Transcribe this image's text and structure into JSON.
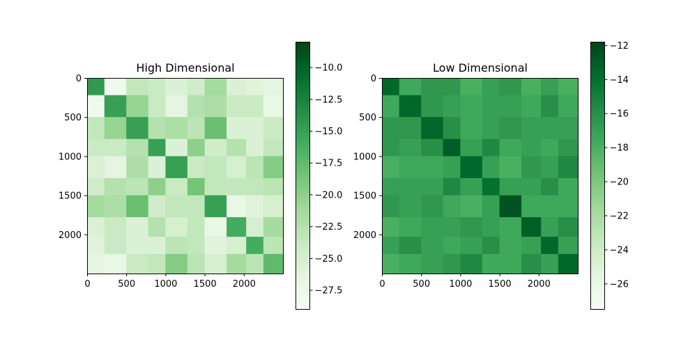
{
  "chart_data": [
    {
      "type": "heatmap",
      "title": "High Dimensional",
      "xlim": [
        0,
        2500
      ],
      "ylim": [
        2500,
        0
      ],
      "xticks": [
        0,
        500,
        1000,
        1500,
        2000
      ],
      "yticks": [
        0,
        500,
        1000,
        1500,
        2000
      ],
      "block_edges": [
        0,
        220,
        500,
        780,
        1000,
        1280,
        1500,
        1780,
        2030,
        2250,
        2500
      ],
      "block_values": [
        [
          -14.5,
          -28.0,
          -23.5,
          -24.0,
          -25.5,
          -24.5,
          -21.5,
          -25.5,
          -26.0,
          -26.5
        ],
        [
          -28.0,
          -15.0,
          -20.5,
          -24.0,
          -26.5,
          -22.5,
          -22.0,
          -24.0,
          -24.0,
          -27.0
        ],
        [
          -23.5,
          -20.5,
          -15.0,
          -22.5,
          -22.0,
          -23.0,
          -18.0,
          -25.5,
          -25.5,
          -24.0
        ],
        [
          -24.0,
          -24.0,
          -22.5,
          -15.0,
          -25.5,
          -20.0,
          -24.5,
          -22.5,
          -25.5,
          -23.5
        ],
        [
          -25.5,
          -26.5,
          -22.0,
          -25.5,
          -15.0,
          -24.0,
          -23.5,
          -25.0,
          -23.0,
          -19.5
        ],
        [
          -24.5,
          -22.5,
          -23.0,
          -20.0,
          -24.0,
          -18.5,
          -23.5,
          -23.5,
          -23.5,
          -23.0
        ],
        [
          -21.5,
          -22.0,
          -18.0,
          -24.5,
          -23.5,
          -23.5,
          -15.0,
          -27.0,
          -26.0,
          -25.0
        ],
        [
          -25.5,
          -24.0,
          -25.5,
          -22.5,
          -25.0,
          -23.5,
          -27.0,
          -16.0,
          -25.0,
          -21.5
        ],
        [
          -26.0,
          -24.0,
          -25.5,
          -25.5,
          -23.0,
          -23.5,
          -26.0,
          -25.0,
          -16.0,
          -23.0
        ],
        [
          -26.5,
          -27.0,
          -24.0,
          -23.5,
          -19.5,
          -23.0,
          -25.0,
          -21.5,
          -23.0,
          -17.5
        ]
      ],
      "colorbar": {
        "range": [
          -29,
          -8
        ],
        "ticks": [
          -10.0,
          -12.5,
          -15.0,
          -17.5,
          -20.0,
          -22.5,
          -25.0,
          -27.5
        ],
        "tick_labels": [
          "−10.0",
          "−12.5",
          "−15.0",
          "−17.5",
          "−20.0",
          "−22.5",
          "−25.0",
          "−27.5"
        ]
      }
    },
    {
      "type": "heatmap",
      "title": "Low Dimensional",
      "xlim": [
        0,
        2500
      ],
      "ylim": [
        2500,
        0
      ],
      "xticks": [
        0,
        500,
        1000,
        1500,
        2000
      ],
      "yticks": [
        0,
        500,
        1000,
        1500,
        2000
      ],
      "block_edges": [
        0,
        220,
        500,
        780,
        1000,
        1280,
        1500,
        1780,
        2030,
        2250,
        2500
      ],
      "block_values": [
        [
          -13.5,
          -17.5,
          -16.5,
          -16.5,
          -18.0,
          -17.0,
          -16.5,
          -18.0,
          -17.0,
          -18.0
        ],
        [
          -17.5,
          -13.5,
          -16.5,
          -17.0,
          -17.5,
          -17.0,
          -17.0,
          -17.5,
          -16.0,
          -17.5
        ],
        [
          -16.5,
          -16.5,
          -13.5,
          -16.0,
          -17.5,
          -17.0,
          -16.5,
          -17.0,
          -17.0,
          -17.0
        ],
        [
          -16.5,
          -17.0,
          -16.0,
          -13.0,
          -17.0,
          -15.5,
          -17.5,
          -17.0,
          -17.5,
          -16.5
        ],
        [
          -18.0,
          -17.5,
          -17.5,
          -17.0,
          -13.5,
          -17.0,
          -18.0,
          -16.5,
          -17.0,
          -15.5
        ],
        [
          -17.0,
          -17.0,
          -17.0,
          -15.5,
          -17.0,
          -14.0,
          -17.0,
          -17.0,
          -16.0,
          -17.5
        ],
        [
          -16.5,
          -17.0,
          -16.5,
          -17.5,
          -18.0,
          -17.0,
          -12.5,
          -17.5,
          -17.5,
          -17.5
        ],
        [
          -18.0,
          -17.5,
          -17.0,
          -17.0,
          -16.5,
          -17.0,
          -17.5,
          -13.0,
          -17.0,
          -16.0
        ],
        [
          -17.0,
          -16.0,
          -17.0,
          -17.5,
          -17.0,
          -16.0,
          -17.5,
          -17.0,
          -13.5,
          -17.0
        ],
        [
          -18.0,
          -17.5,
          -17.0,
          -16.5,
          -15.5,
          -17.5,
          -17.5,
          -16.0,
          -17.0,
          -13.5
        ]
      ],
      "colorbar": {
        "range": [
          -27.5,
          -11.8
        ],
        "ticks": [
          -12,
          -14,
          -16,
          -18,
          -20,
          -22,
          -24,
          -26
        ],
        "tick_labels": [
          "−12",
          "−14",
          "−16",
          "−18",
          "−20",
          "−22",
          "−24",
          "−26"
        ]
      }
    }
  ],
  "colors": {
    "greens": [
      "#f7fcf5",
      "#e5f5e0",
      "#c7e9c0",
      "#a1d99b",
      "#74c476",
      "#41ab5d",
      "#238b45",
      "#006d2c",
      "#00441b"
    ]
  }
}
